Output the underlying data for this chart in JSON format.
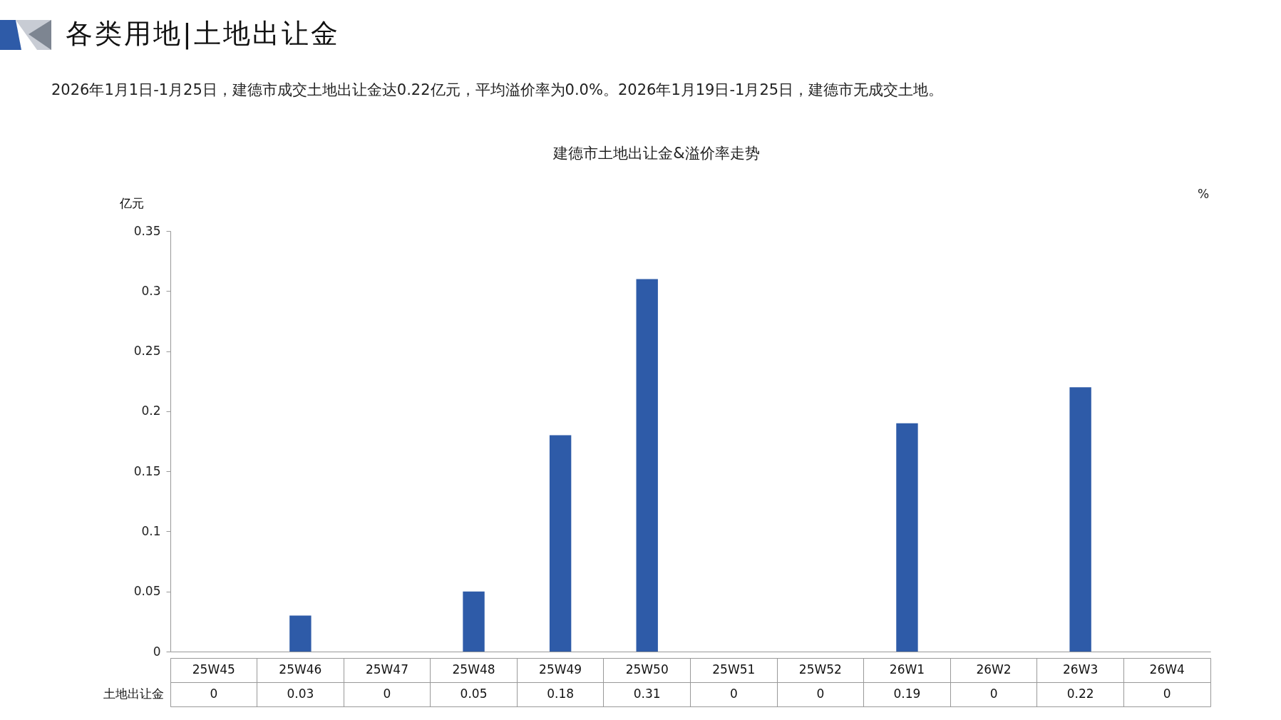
{
  "chart_data": {
    "type": "bar",
    "title": "各类用地|土地出让金",
    "subtitle": "2026年1月1日-1月25日，建德市成交土地出让金达0.22亿元，平均溢价率为0.0%。2026年1月19日-1月25日，建德市无成交土地。",
    "annotations": [
      "建德市土地出让金&溢价率走势"
    ],
    "ylabel": "亿元",
    "y2label": "%",
    "categories": [
      "25W45",
      "25W46",
      "25W47",
      "25W48",
      "25W49",
      "25W50",
      "25W51",
      "25W52",
      "26W1",
      "26W2",
      "26W3",
      "26W4"
    ],
    "series": [
      {
        "name": "土地出让金",
        "color": "#2e5ba8",
        "values": [
          0,
          0.03,
          0,
          0.05,
          0.18,
          0.31,
          0,
          0,
          0.19,
          0,
          0.22,
          0
        ]
      }
    ],
    "ylim": [
      0,
      0.35
    ],
    "yticks": [
      0,
      0.05,
      0.1,
      0.15,
      0.2,
      0.25,
      0.3,
      0.35
    ],
    "grid": false,
    "data_labels": true
  }
}
